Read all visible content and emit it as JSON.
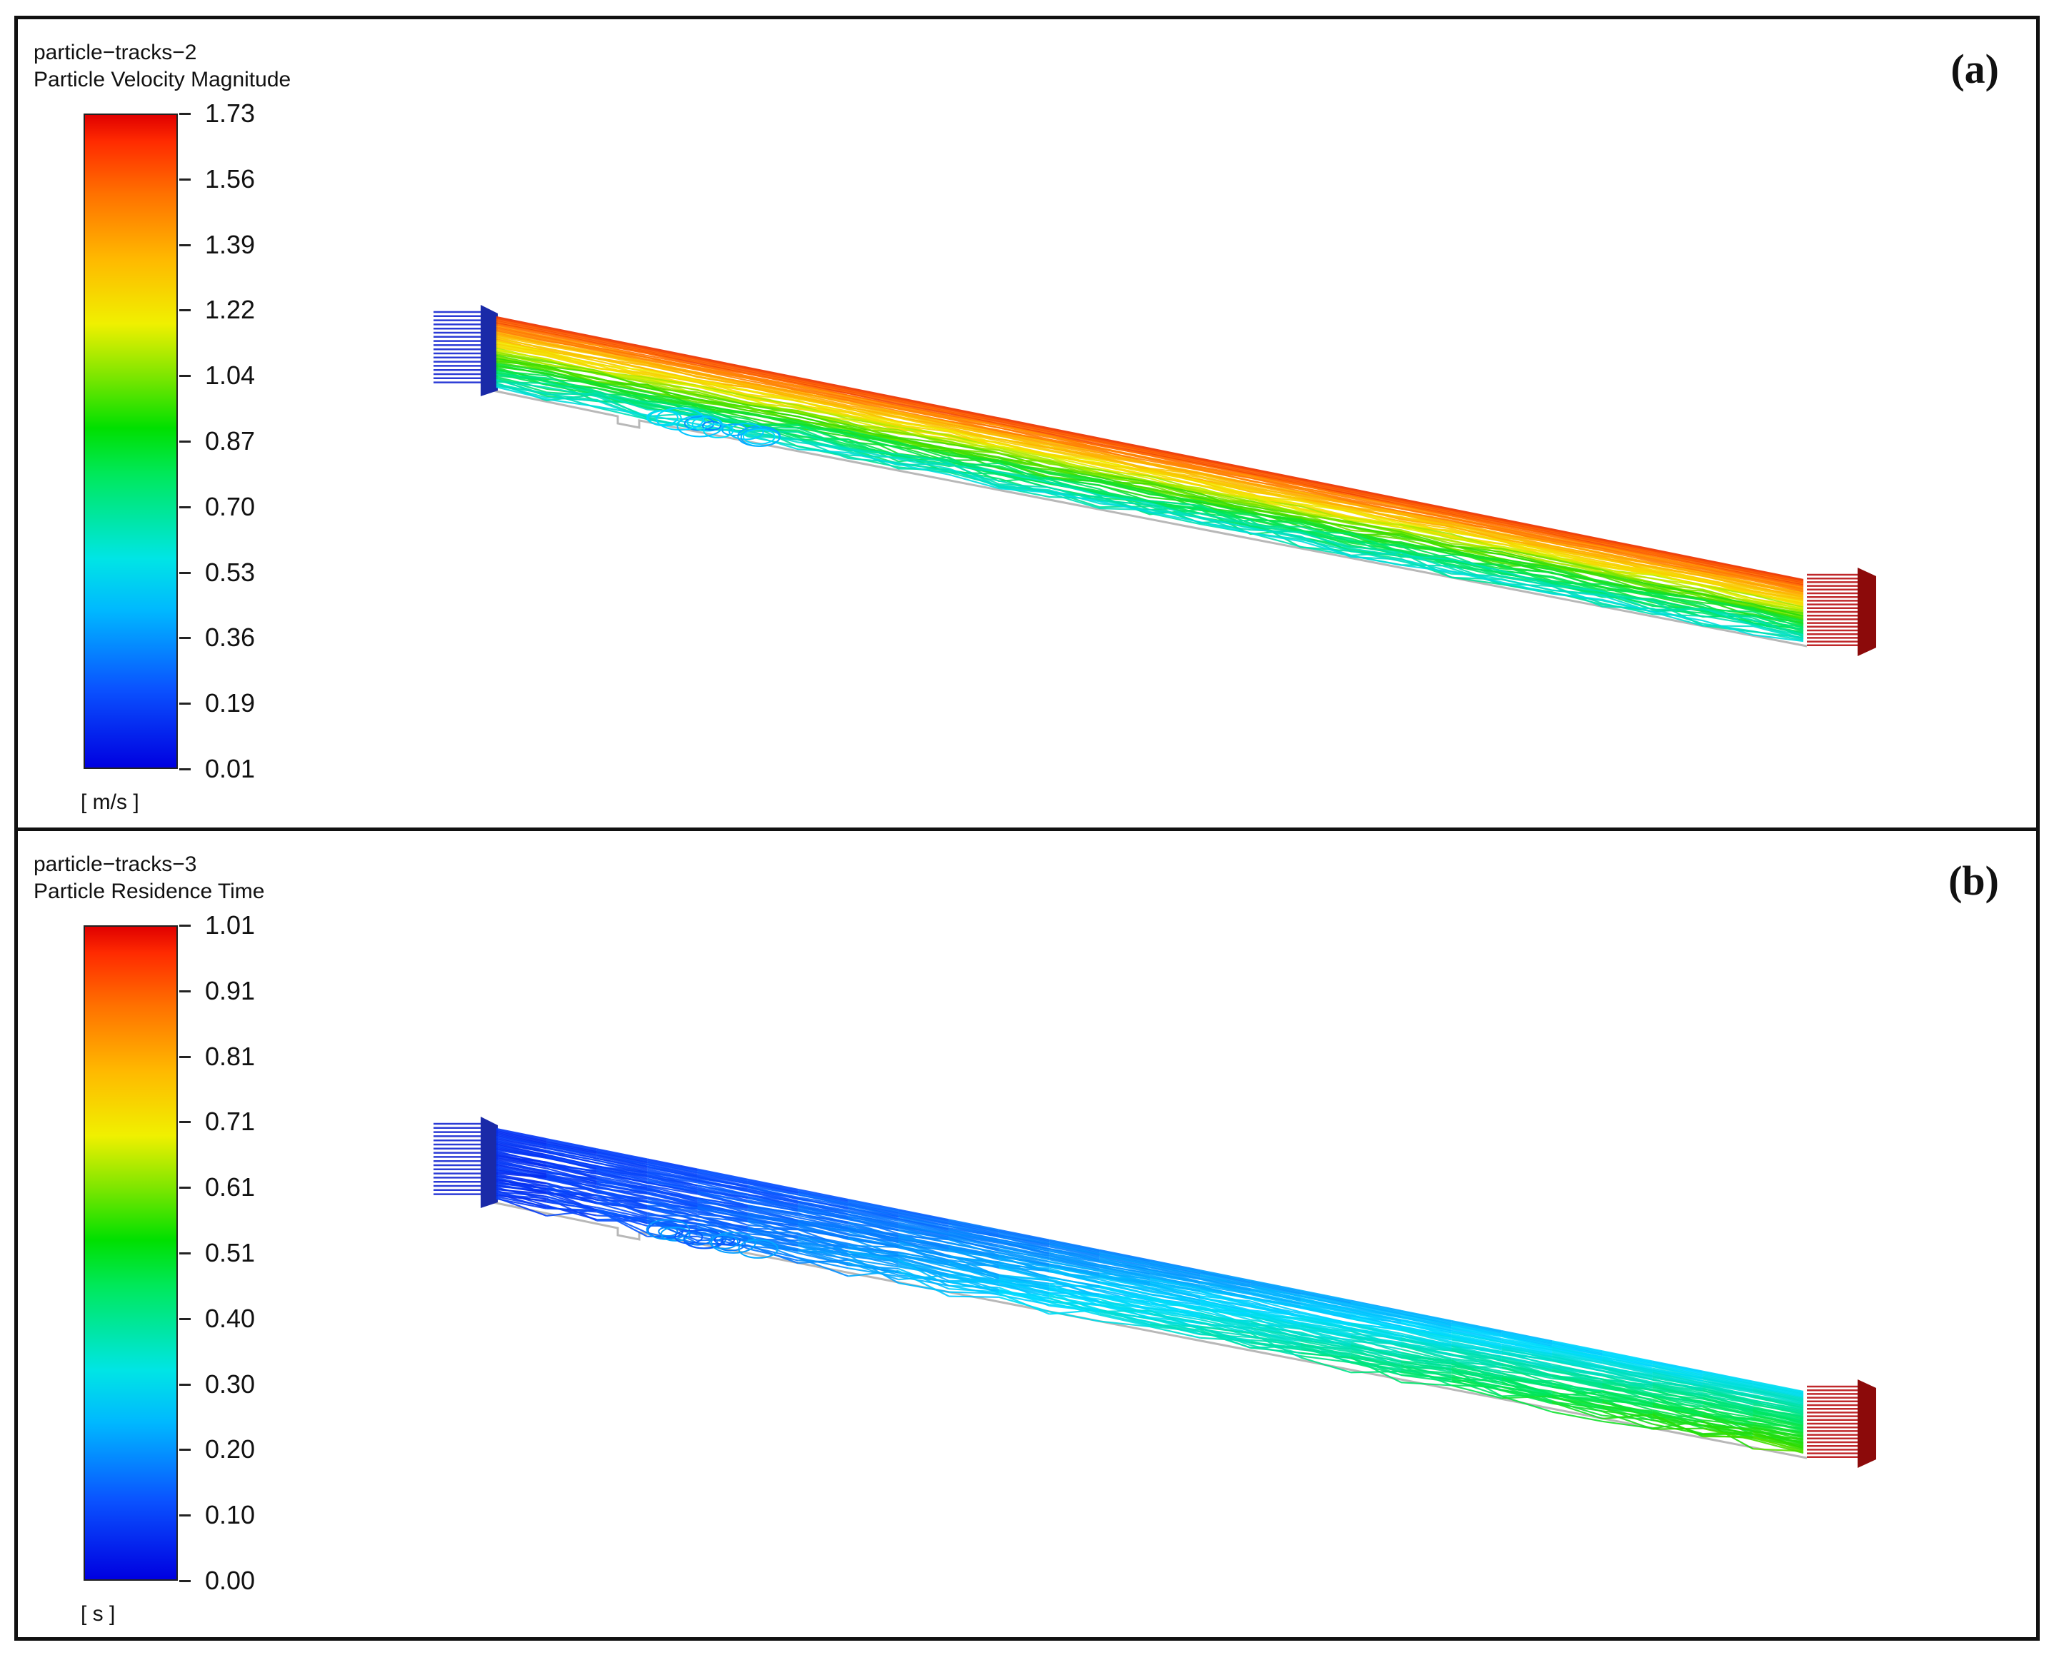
{
  "panels": [
    {
      "id": "a",
      "label": "(a)",
      "track_name": "particle−tracks−2",
      "variable": "Particle Velocity Magnitude",
      "unit": "[ m/s ]",
      "ticks": [
        "1.73",
        "1.56",
        "1.39",
        "1.22",
        "1.04",
        "0.87",
        "0.70",
        "0.53",
        "0.36",
        "0.19",
        "0.01"
      ],
      "range": [
        0.01,
        1.73
      ]
    },
    {
      "id": "b",
      "label": "(b)",
      "track_name": "particle−tracks−3",
      "variable": "Particle Residence Time",
      "unit": "[ s ]",
      "ticks": [
        "1.01",
        "0.91",
        "0.81",
        "0.71",
        "0.61",
        "0.51",
        "0.40",
        "0.30",
        "0.20",
        "0.10",
        "0.00"
      ],
      "range": [
        0.0,
        1.01
      ]
    }
  ],
  "colors": {
    "border": "#111111",
    "inlet_arrows": "#2b3bd6",
    "outlet_arrows": "#c0282b",
    "domain_outline": "#b8b8b8"
  },
  "icons": [
    "inlet-arrow-icon",
    "outlet-arrow-icon"
  ]
}
